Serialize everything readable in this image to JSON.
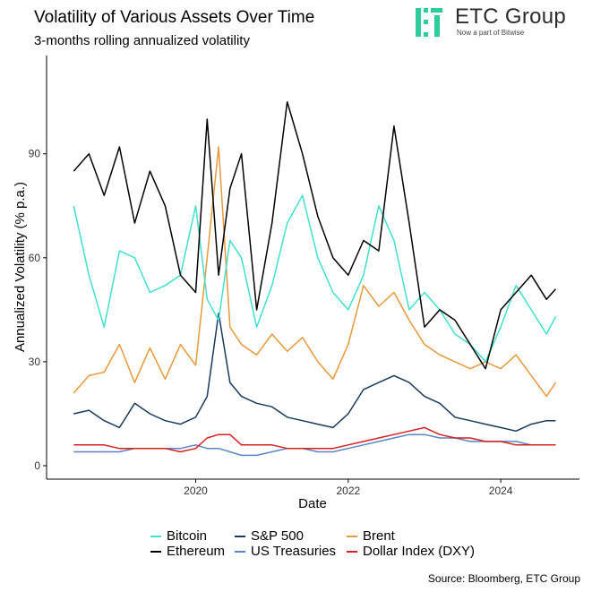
{
  "title": "Volatility of Various Assets Over Time",
  "subtitle": "3-months rolling annualized volatility",
  "logo": {
    "name": "ETC Group",
    "tagline": "Now a part of Bitwise",
    "icon": "etc-group-logo-icon",
    "color": "#2ecc9a"
  },
  "source": "Source: Bloomberg, ETC Group",
  "chart_data": {
    "type": "line",
    "title": "Volatility of Various Assets Over Time",
    "subtitle": "3-months rolling annualized volatility",
    "xlabel": "Date",
    "ylabel": "Annualized Volatility (% p.a.)",
    "xlim": [
      2018.35,
      2024.75
    ],
    "ylim": [
      0,
      115
    ],
    "xticks": [
      2020,
      2022,
      2024
    ],
    "xtick_labels": [
      "2020",
      "2022",
      "2024"
    ],
    "yticks": [
      0,
      30,
      60,
      90
    ],
    "ytick_labels": [
      "0",
      "30",
      "60",
      "90"
    ],
    "grid": false,
    "legend_position": "bottom",
    "x": [
      2018.4,
      2018.6,
      2018.8,
      2019.0,
      2019.2,
      2019.4,
      2019.6,
      2019.8,
      2020.0,
      2020.15,
      2020.3,
      2020.45,
      2020.6,
      2020.8,
      2021.0,
      2021.2,
      2021.4,
      2021.6,
      2021.8,
      2022.0,
      2022.2,
      2022.4,
      2022.6,
      2022.8,
      2023.0,
      2023.2,
      2023.4,
      2023.6,
      2023.8,
      2024.0,
      2024.2,
      2024.4,
      2024.6,
      2024.72
    ],
    "series": [
      {
        "name": "Bitcoin",
        "color": "#40e0d0",
        "values": [
          75,
          55,
          40,
          62,
          60,
          50,
          52,
          55,
          75,
          48,
          42,
          65,
          60,
          40,
          52,
          70,
          78,
          60,
          50,
          45,
          55,
          75,
          65,
          45,
          50,
          45,
          38,
          35,
          30,
          40,
          52,
          45,
          38,
          43
        ]
      },
      {
        "name": "Ethereum",
        "color": "#000000",
        "values": [
          85,
          90,
          78,
          92,
          70,
          85,
          75,
          55,
          50,
          100,
          55,
          80,
          90,
          45,
          70,
          105,
          90,
          72,
          60,
          55,
          65,
          62,
          98,
          70,
          40,
          45,
          42,
          35,
          28,
          45,
          50,
          55,
          48,
          51
        ]
      },
      {
        "name": "Brent",
        "color": "#e8993c",
        "values": [
          21,
          26,
          27,
          35,
          24,
          34,
          25,
          35,
          29,
          60,
          92,
          40,
          35,
          32,
          38,
          33,
          37,
          30,
          25,
          35,
          52,
          46,
          50,
          42,
          35,
          32,
          30,
          28,
          30,
          28,
          32,
          26,
          20,
          24
        ]
      },
      {
        "name": "S&P 500",
        "color": "#1a3a5c",
        "values": [
          15,
          16,
          13,
          11,
          18,
          15,
          13,
          12,
          14,
          20,
          44,
          24,
          20,
          18,
          17,
          14,
          13,
          12,
          11,
          15,
          22,
          24,
          26,
          24,
          20,
          18,
          14,
          13,
          12,
          11,
          10,
          12,
          13,
          13
        ]
      },
      {
        "name": "US Treasuries",
        "color": "#5b84c4",
        "values": [
          4,
          4,
          4,
          4,
          5,
          5,
          5,
          5,
          6,
          5,
          5,
          4,
          3,
          3,
          4,
          5,
          5,
          4,
          4,
          5,
          6,
          7,
          8,
          9,
          9,
          8,
          8,
          7,
          7,
          7,
          7,
          6,
          6,
          6
        ]
      },
      {
        "name": "Dollar Index (DXY)",
        "color": "#d62020",
        "values": [
          6,
          6,
          6,
          5,
          5,
          5,
          5,
          4,
          5,
          8,
          9,
          9,
          6,
          6,
          6,
          5,
          5,
          5,
          5,
          6,
          7,
          8,
          9,
          10,
          11,
          9,
          8,
          8,
          7,
          7,
          6,
          6,
          6,
          6
        ]
      }
    ]
  }
}
